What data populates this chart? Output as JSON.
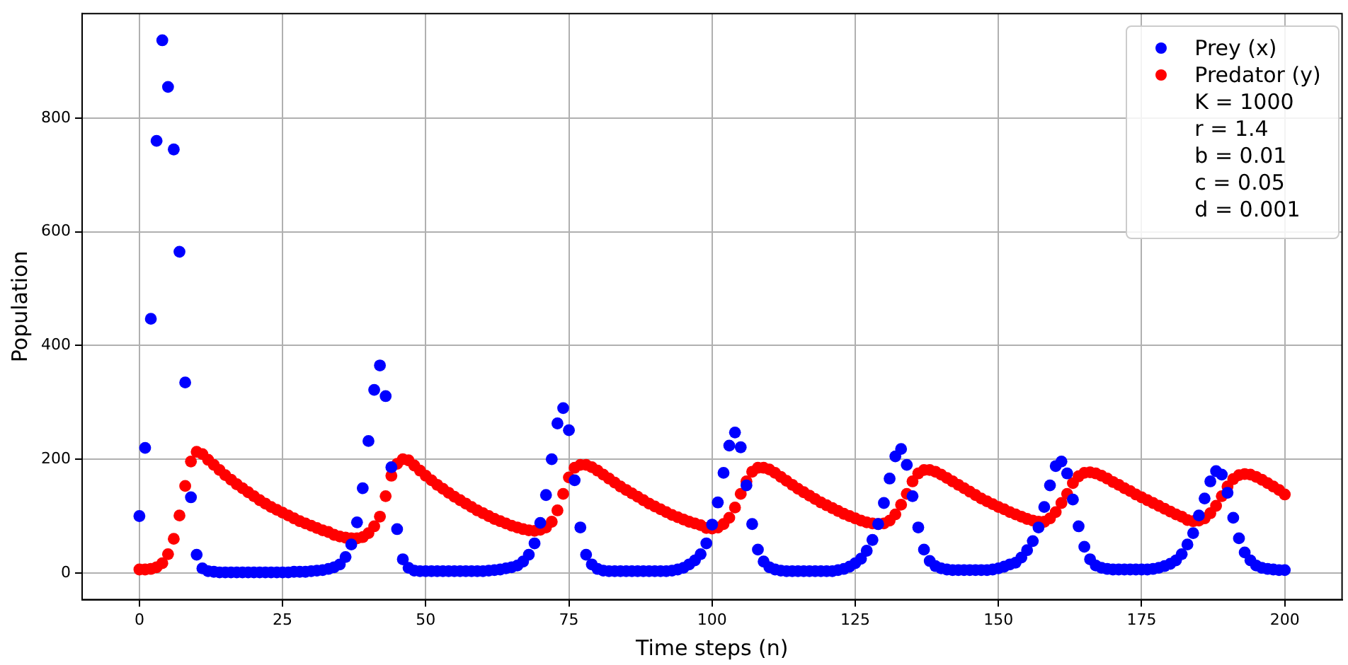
{
  "chart_data": {
    "type": "scatter",
    "xlabel": "Time steps (n)",
    "ylabel": "Population",
    "x": [
      0,
      1,
      2,
      3,
      4,
      5,
      6,
      7,
      8,
      9,
      10,
      11,
      12,
      13,
      14,
      15,
      16,
      17,
      18,
      19,
      20,
      21,
      22,
      23,
      24,
      25,
      26,
      27,
      28,
      29,
      30,
      31,
      32,
      33,
      34,
      35,
      36,
      37,
      38,
      39,
      40,
      41,
      42,
      43,
      44,
      45,
      46,
      47,
      48,
      49,
      50,
      51,
      52,
      53,
      54,
      55,
      56,
      57,
      58,
      59,
      60,
      61,
      62,
      63,
      64,
      65,
      66,
      67,
      68,
      69,
      70,
      71,
      72,
      73,
      74,
      75,
      76,
      77,
      78,
      79,
      80,
      81,
      82,
      83,
      84,
      85,
      86,
      87,
      88,
      89,
      90,
      91,
      92,
      93,
      94,
      95,
      96,
      97,
      98,
      99,
      100,
      101,
      102,
      103,
      104,
      105,
      106,
      107,
      108,
      109,
      110,
      111,
      112,
      113,
      114,
      115,
      116,
      117,
      118,
      119,
      120,
      121,
      122,
      123,
      124,
      125,
      126,
      127,
      128,
      129,
      130,
      131,
      132,
      133,
      134,
      135,
      136,
      137,
      138,
      139,
      140,
      141,
      142,
      143,
      144,
      145,
      146,
      147,
      148,
      149,
      150,
      151,
      152,
      153,
      154,
      155,
      156,
      157,
      158,
      159,
      160,
      161,
      162,
      163,
      164,
      165,
      166,
      167,
      168,
      169,
      170,
      171,
      172,
      173,
      174,
      175,
      176,
      177,
      178,
      179,
      180,
      181,
      182,
      183,
      184,
      185,
      186,
      187,
      188,
      189,
      190,
      191,
      192,
      193,
      194,
      195,
      196,
      197,
      198,
      199,
      200
    ],
    "series": [
      {
        "name": "Prey (x)",
        "color": "#0000ff",
        "values": [
          100,
          220,
          447,
          760,
          937,
          855,
          745,
          565,
          335,
          133,
          32,
          8,
          3,
          2,
          1,
          1,
          1,
          1,
          1,
          1,
          1,
          1,
          1,
          1,
          1,
          1,
          1,
          2,
          2,
          2,
          3,
          4,
          5,
          7,
          10,
          15,
          28,
          50,
          89,
          149,
          232,
          322,
          365,
          311,
          186,
          77,
          24,
          9,
          4,
          3,
          3,
          3,
          3,
          3,
          3,
          3,
          3,
          3,
          3,
          3,
          3,
          4,
          5,
          6,
          8,
          10,
          13,
          20,
          32,
          52,
          88,
          137,
          200,
          263,
          290,
          251,
          163,
          80,
          32,
          15,
          7,
          4,
          3,
          3,
          3,
          3,
          3,
          3,
          3,
          3,
          3,
          3,
          3,
          4,
          6,
          9,
          15,
          22,
          33,
          52,
          85,
          124,
          176,
          224,
          247,
          221,
          154,
          86,
          41,
          20,
          10,
          6,
          4,
          3,
          3,
          3,
          3,
          3,
          3,
          3,
          3,
          3,
          5,
          7,
          11,
          17,
          25,
          39,
          58,
          86,
          123,
          166,
          205,
          218,
          190,
          135,
          80,
          41,
          21,
          12,
          8,
          6,
          5,
          5,
          5,
          5,
          5,
          5,
          5,
          6,
          8,
          11,
          15,
          18,
          27,
          40,
          56,
          80,
          116,
          154,
          188,
          196,
          175,
          129,
          82,
          46,
          24,
          13,
          9,
          7,
          6,
          6,
          6,
          6,
          6,
          6,
          6,
          7,
          9,
          12,
          16,
          22,
          33,
          50,
          70,
          101,
          131,
          161,
          179,
          173,
          141,
          97,
          61,
          36,
          22,
          13,
          9,
          7,
          6,
          5,
          5
        ]
      },
      {
        "name": "Predator (y)",
        "color": "#ff0000",
        "values": [
          6,
          6,
          7,
          10,
          17,
          33,
          60,
          101,
          153,
          196,
          213,
          209,
          199,
          190,
          181,
          172,
          164,
          156,
          149,
          142,
          135,
          128,
          122,
          116,
          111,
          106,
          101,
          96,
          91,
          87,
          83,
          79,
          75,
          72,
          67,
          64,
          62,
          61,
          61,
          63,
          70,
          82,
          99,
          135,
          171,
          192,
          200,
          198,
          189,
          180,
          171,
          163,
          155,
          148,
          141,
          134,
          128,
          122,
          116,
          110,
          105,
          100,
          95,
          91,
          87,
          83,
          80,
          77,
          75,
          74,
          76,
          80,
          90,
          110,
          139,
          168,
          185,
          190,
          190,
          186,
          180,
          173,
          166,
          159,
          152,
          146,
          140,
          134,
          128,
          122,
          117,
          112,
          107,
          102,
          98,
          94,
          90,
          87,
          84,
          79,
          78,
          80,
          86,
          97,
          115,
          139,
          161,
          178,
          185,
          185,
          182,
          176,
          169,
          162,
          155,
          148,
          142,
          136,
          130,
          124,
          119,
          114,
          109,
          104,
          100,
          96,
          92,
          89,
          87,
          86,
          87,
          92,
          103,
          120,
          139,
          161,
          175,
          181,
          181,
          178,
          173,
          167,
          161,
          155,
          149,
          143,
          137,
          131,
          126,
          121,
          116,
          112,
          107,
          103,
          99,
          95,
          92,
          90,
          90,
          96,
          107,
          123,
          139,
          158,
          170,
          176,
          177,
          175,
          171,
          166,
          160,
          155,
          149,
          144,
          138,
          133,
          128,
          123,
          118,
          113,
          108,
          103,
          99,
          93,
          91,
          92,
          96,
          105,
          118,
          135,
          152,
          165,
          172,
          174,
          173,
          169,
          164,
          158,
          152,
          146,
          138
        ]
      }
    ],
    "xlim": [
      -10,
      210
    ],
    "ylim": [
      -47,
      984
    ],
    "xticks": [
      0,
      25,
      50,
      75,
      100,
      125,
      150,
      175,
      200
    ],
    "yticks": [
      0,
      200,
      400,
      600,
      800
    ],
    "grid": true,
    "marker": "circle",
    "legend": "top right",
    "annotations": [
      "K = 1000",
      "r = 1.4",
      "b = 0.01",
      "c = 0.05",
      "d = 0.001"
    ]
  }
}
